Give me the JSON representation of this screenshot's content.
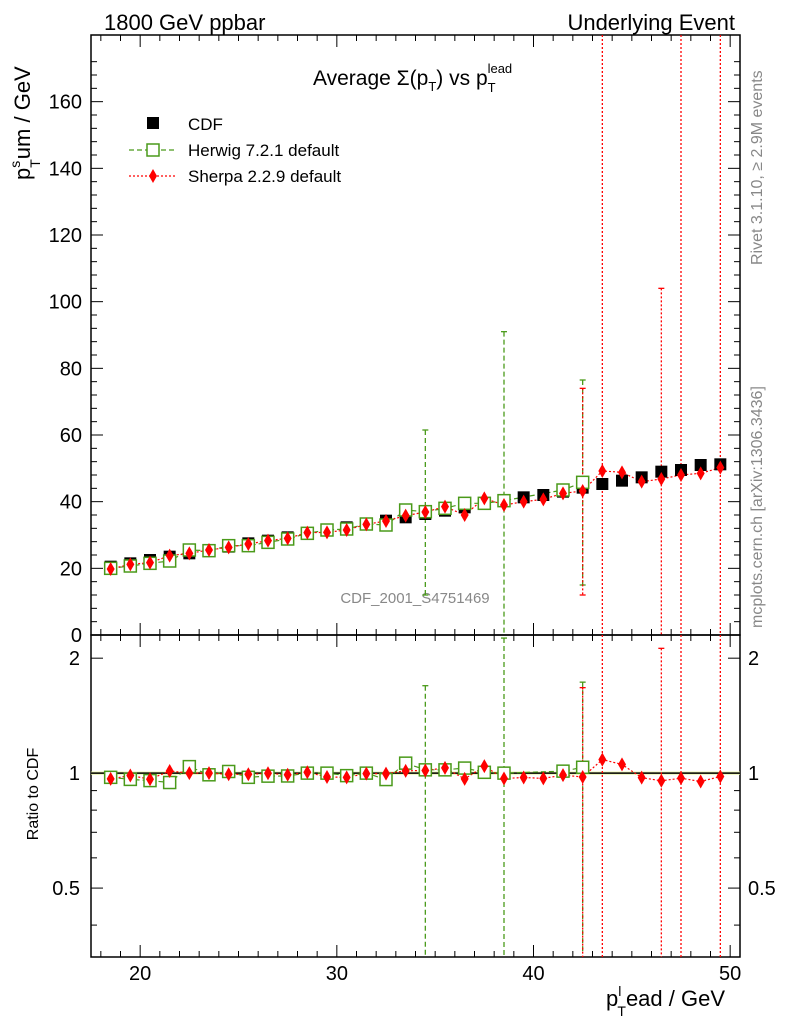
{
  "header": {
    "left": "1800 GeV ppbar",
    "right": "Underlying Event"
  },
  "side": {
    "rivet": "Rivet 3.1.10, ≥ 2.9M events",
    "mcplots": "mcplots.cern.ch [arXiv:1306.3436]"
  },
  "watermark": "CDF_2001_S4751469",
  "title": {
    "main": "Average Σ(p",
    "sub1": "T",
    "mid": ") vs p",
    "sub2": "T",
    "sup2": "lead"
  },
  "ylabel": {
    "p": "p",
    "sup": "s",
    "sub": "T",
    "rest": "um / GeV"
  },
  "xlabel": {
    "p": "p",
    "sup": "l",
    "sub": "T",
    "rest": "ead / GeV"
  },
  "ratio_ylabel": "Ratio to CDF",
  "legend": [
    {
      "label": "CDF",
      "color": "#000000",
      "marker": "square"
    },
    {
      "label": "Herwig 7.2.1 default",
      "color": "#4a9a1a",
      "marker": "open-square"
    },
    {
      "label": "Sherpa 2.2.9 default",
      "color": "#ff0000",
      "marker": "diamond"
    }
  ],
  "chart_data": {
    "type": "scatter",
    "title": "Average Σ(pT) vs pT lead",
    "xlabel": "pT lead / GeV",
    "ylabel": "pT sum / GeV",
    "xlim": [
      17.5,
      50.5
    ],
    "ylim": [
      0,
      180
    ],
    "ratio_ylim": [
      0.33,
      2.3
    ],
    "xticks": [
      20,
      30,
      40,
      50
    ],
    "yticks": [
      0,
      20,
      40,
      60,
      80,
      100,
      120,
      140,
      160
    ],
    "ratio_yticks": [
      0.5,
      1,
      2
    ],
    "x": [
      18.5,
      19.5,
      20.5,
      21.5,
      22.5,
      23.5,
      24.5,
      25.5,
      26.5,
      27.5,
      28.5,
      29.5,
      30.5,
      31.5,
      32.5,
      33.5,
      34.5,
      35.5,
      36.5,
      37.5,
      38.5,
      39.5,
      40.5,
      41.5,
      42.5,
      43.5,
      44.5,
      45.5,
      46.5,
      47.5,
      48.5,
      49.5
    ],
    "series": [
      {
        "name": "CDF",
        "values": [
          20.5,
          21.5,
          22.5,
          23.5,
          24.5,
          25.5,
          26.5,
          27.5,
          28.3,
          29.3,
          30.5,
          31.5,
          32.3,
          33.3,
          34.3,
          35.3,
          36.3,
          37.3,
          38.3,
          39.3,
          40.3,
          41.3,
          42.0,
          43.0,
          44.2,
          45.3,
          46.3,
          47.3,
          49.0,
          49.5,
          51.0,
          51.2
        ]
      },
      {
        "name": "Herwig 7.2.1 default",
        "values": [
          20.0,
          20.7,
          21.5,
          22.2,
          25.5,
          25.3,
          26.8,
          26.8,
          27.8,
          28.8,
          30.5,
          31.5,
          31.8,
          33.3,
          33.0,
          37.5,
          37.0,
          38.0,
          39.5,
          39.5,
          40.3,
          null,
          null,
          43.5,
          45.8,
          null,
          null,
          null,
          null,
          null,
          null,
          null
        ],
        "yerr_hi": [
          null,
          null,
          null,
          null,
          null,
          null,
          null,
          null,
          null,
          null,
          null,
          null,
          null,
          null,
          null,
          null,
          61.5,
          null,
          null,
          null,
          91.0,
          null,
          null,
          null,
          76.5,
          null,
          null,
          null,
          null,
          null,
          null,
          null
        ],
        "yerr_lo": [
          null,
          null,
          null,
          null,
          null,
          null,
          null,
          null,
          null,
          null,
          null,
          null,
          null,
          null,
          null,
          null,
          12.0,
          null,
          null,
          null,
          0,
          null,
          null,
          null,
          15.0,
          null,
          null,
          null,
          null,
          null,
          null,
          null
        ]
      },
      {
        "name": "Sherpa 2.2.9 default",
        "values": [
          19.8,
          21.2,
          21.7,
          23.8,
          24.5,
          25.5,
          26.3,
          27.3,
          28.3,
          29.0,
          30.7,
          30.8,
          31.5,
          33.2,
          34.2,
          35.8,
          36.9,
          38.5,
          36.0,
          41.0,
          39.0,
          40.0,
          40.7,
          42.5,
          43.2,
          49.2,
          48.8,
          46.0,
          46.8,
          48.0,
          48.5,
          50.2
        ],
        "yerr_hi": [
          null,
          null,
          null,
          null,
          null,
          null,
          null,
          null,
          null,
          null,
          null,
          null,
          null,
          null,
          null,
          null,
          null,
          null,
          null,
          null,
          null,
          null,
          null,
          null,
          74.0,
          200,
          null,
          null,
          104,
          200,
          null,
          200
        ],
        "yerr_lo": [
          null,
          null,
          null,
          null,
          null,
          null,
          null,
          null,
          null,
          null,
          null,
          null,
          null,
          null,
          null,
          null,
          null,
          null,
          null,
          null,
          null,
          null,
          null,
          null,
          12.0,
          0,
          null,
          null,
          0,
          0,
          null,
          0
        ]
      }
    ],
    "ratio": {
      "Herwig 7.2.1 default": [
        0.975,
        0.963,
        0.956,
        0.945,
        1.04,
        0.99,
        1.01,
        0.975,
        0.982,
        0.983,
        1.0,
        1.0,
        0.985,
        1.0,
        0.962,
        1.062,
        1.02,
        1.02,
        1.031,
        1.005,
        1.0,
        null,
        null,
        1.012,
        1.036,
        null,
        null,
        null,
        null,
        null,
        null,
        null
      ],
      "Sherpa 2.2.9 default": [
        0.966,
        0.986,
        0.964,
        1.013,
        1.0,
        1.0,
        0.993,
        0.993,
        0.999,
        0.99,
        1.005,
        0.977,
        0.975,
        0.997,
        0.997,
        1.014,
        1.016,
        1.032,
        0.966,
        1.043,
        0.968,
        0.974,
        0.969,
        0.988,
        0.977,
        1.085,
        1.054,
        0.973,
        0.955,
        0.97,
        0.951,
        0.98
      ]
    }
  }
}
